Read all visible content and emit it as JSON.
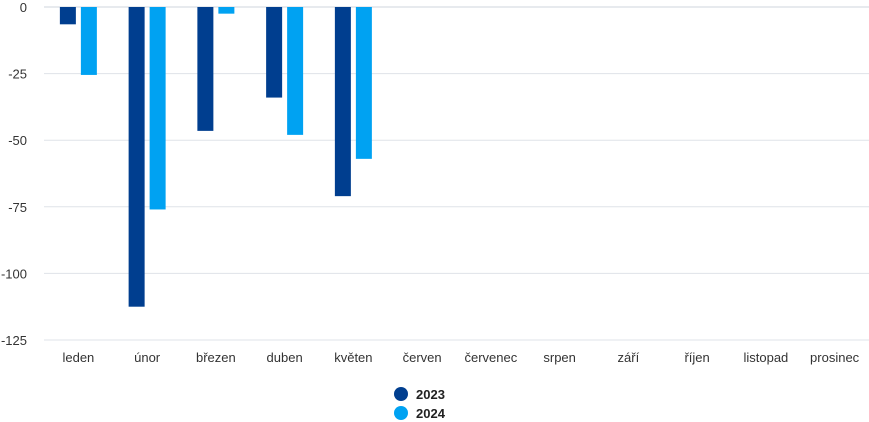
{
  "chart_data": {
    "type": "bar",
    "title": "",
    "xlabel": "",
    "ylabel": "",
    "categories": [
      "leden",
      "únor",
      "březen",
      "duben",
      "květen",
      "červen",
      "červenec",
      "srpen",
      "září",
      "říjen",
      "listopad",
      "prosinec"
    ],
    "series": [
      {
        "name": "2023",
        "color": "#003e8f",
        "values": [
          -6.5,
          -112.5,
          -46.5,
          -34,
          -71,
          null,
          null,
          null,
          null,
          null,
          null,
          null
        ]
      },
      {
        "name": "2024",
        "color": "#00a2f2",
        "values": [
          -25.5,
          -76,
          -2.5,
          -48,
          -57,
          null,
          null,
          null,
          null,
          null,
          null,
          null
        ]
      }
    ],
    "ylim": [
      -125,
      0
    ],
    "yticks": [
      0,
      -25,
      -50,
      -75,
      -100,
      -125
    ],
    "ytick_labels": [
      "0",
      "-25",
      "-50",
      "-75",
      "-100",
      "-125"
    ],
    "grid": true,
    "legend_position": "bottom"
  }
}
